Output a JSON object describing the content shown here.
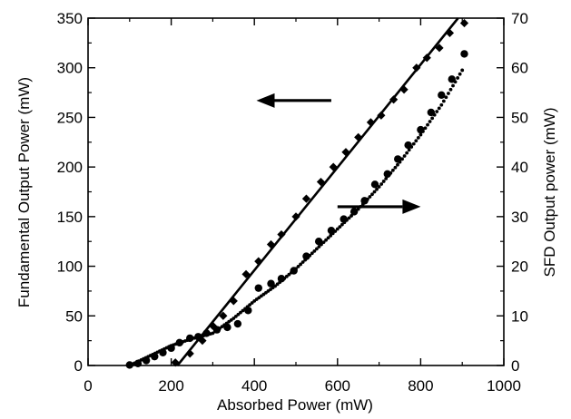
{
  "chart_data": {
    "type": "scatter",
    "xlabel": "Absorbed Power (mW)",
    "ylabel_left": "Fundamental Output Power (mW)",
    "ylabel_right": "SFD Output power (mW)",
    "xlim": [
      0,
      1000
    ],
    "ylim_left": [
      0,
      350
    ],
    "ylim_right": [
      0,
      70
    ],
    "xticks": [
      0,
      200,
      400,
      600,
      800,
      1000
    ],
    "yticks_left": [
      0,
      50,
      100,
      150,
      200,
      250,
      300,
      350
    ],
    "yticks_right": [
      0,
      10,
      20,
      30,
      40,
      50,
      60,
      70
    ],
    "grid": false,
    "colors": {
      "ink": "#000000",
      "background": "#ffffff"
    },
    "series": [
      {
        "axis": "left",
        "marker": "diamond",
        "x": [
          210,
          245,
          275,
          300,
          325,
          350,
          380,
          410,
          440,
          465,
          500,
          525,
          560,
          590,
          620,
          650,
          680,
          705,
          735,
          760,
          790,
          815,
          845,
          870,
          905
        ],
        "y": [
          3,
          12,
          25,
          40,
          50,
          65,
          92,
          105,
          122,
          132,
          150,
          168,
          185,
          200,
          215,
          230,
          245,
          252,
          268,
          278,
          300,
          310,
          320,
          335,
          345
        ]
      },
      {
        "axis": "left",
        "type": "line",
        "x": [
          215,
          890
        ],
        "y": [
          0,
          350
        ]
      },
      {
        "axis": "right",
        "marker": "circle",
        "x": [
          100,
          120,
          140,
          160,
          180,
          200,
          220,
          245,
          265,
          285,
          310,
          335,
          360,
          385,
          410,
          440,
          465,
          495,
          525,
          555,
          585,
          615,
          640,
          665,
          690,
          720,
          745,
          770,
          800,
          825,
          850,
          875,
          905
        ],
        "y": [
          0.1,
          0.4,
          1.0,
          1.8,
          2.6,
          3.5,
          4.6,
          5.5,
          5.8,
          6.5,
          7.2,
          7.7,
          8.4,
          11.1,
          15.6,
          16.5,
          17.5,
          19.1,
          22.0,
          25.0,
          27.2,
          29.5,
          31.0,
          33.2,
          36.5,
          38.6,
          41.6,
          44.4,
          47.5,
          51.0,
          54.5,
          57.7,
          62.8
        ]
      },
      {
        "axis": "right",
        "type": "dotted-curve",
        "x": [
          100,
          150,
          200,
          250,
          300,
          350,
          400,
          450,
          500,
          550,
          600,
          650,
          700,
          750,
          800,
          850,
          900
        ],
        "y": [
          0,
          2.0,
          4.0,
          5.4,
          6.5,
          9.5,
          13.0,
          16.0,
          19.5,
          23.5,
          27.5,
          31.5,
          36.0,
          41.0,
          46.5,
          52.5,
          59.5
        ]
      }
    ],
    "annotations": [
      {
        "type": "arrow",
        "direction": "left",
        "points_to_axis": "left",
        "x_from": 585,
        "x_to": 405,
        "y": 267
      },
      {
        "type": "arrow",
        "direction": "right",
        "points_to_axis": "right",
        "x_from": 600,
        "x_to": 800,
        "y": 32
      }
    ]
  }
}
